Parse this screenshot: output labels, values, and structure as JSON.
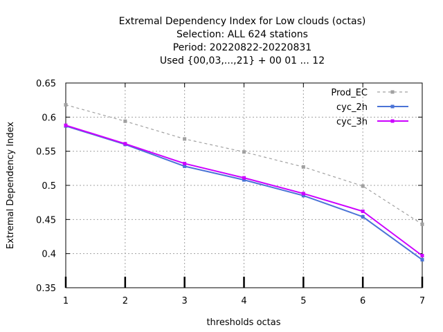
{
  "chart_data": {
    "type": "line",
    "title_lines": [
      "Extremal Dependency Index  for Low clouds (octas)",
      "Selection: ALL    624 stations",
      "Period: 20220822-20220831",
      "Used {00,03,...,21} + 00 01 ... 12"
    ],
    "xlabel": "thresholds octas",
    "ylabel": "Extremal Dependency Index",
    "x": [
      1,
      2,
      3,
      4,
      5,
      6,
      7
    ],
    "xlim": [
      1,
      7
    ],
    "ylim": [
      0.35,
      0.65
    ],
    "yticks": [
      0.35,
      0.4,
      0.45,
      0.5,
      0.55,
      0.6,
      0.65
    ],
    "ytick_labels": [
      "0.35",
      "0.4",
      "0.45",
      "0.5",
      "0.55",
      "0.6",
      "0.65"
    ],
    "xtick_labels": [
      "1",
      "2",
      "3",
      "4",
      "5",
      "6",
      "7"
    ],
    "grid": true,
    "legend_position": "top-right",
    "series": [
      {
        "name": "Prod_EC",
        "color": "#a0a0a0",
        "dashed": true,
        "values": [
          0.618,
          0.594,
          0.568,
          0.549,
          0.527,
          0.499,
          0.443
        ]
      },
      {
        "name": "cyc_2h",
        "color": "#4a73d6",
        "dashed": false,
        "values": [
          0.587,
          0.56,
          0.528,
          0.508,
          0.485,
          0.454,
          0.391
        ]
      },
      {
        "name": "cyc_3h",
        "color": "#cc00ff",
        "dashed": false,
        "values": [
          0.588,
          0.561,
          0.532,
          0.511,
          0.488,
          0.462,
          0.397
        ]
      }
    ]
  }
}
